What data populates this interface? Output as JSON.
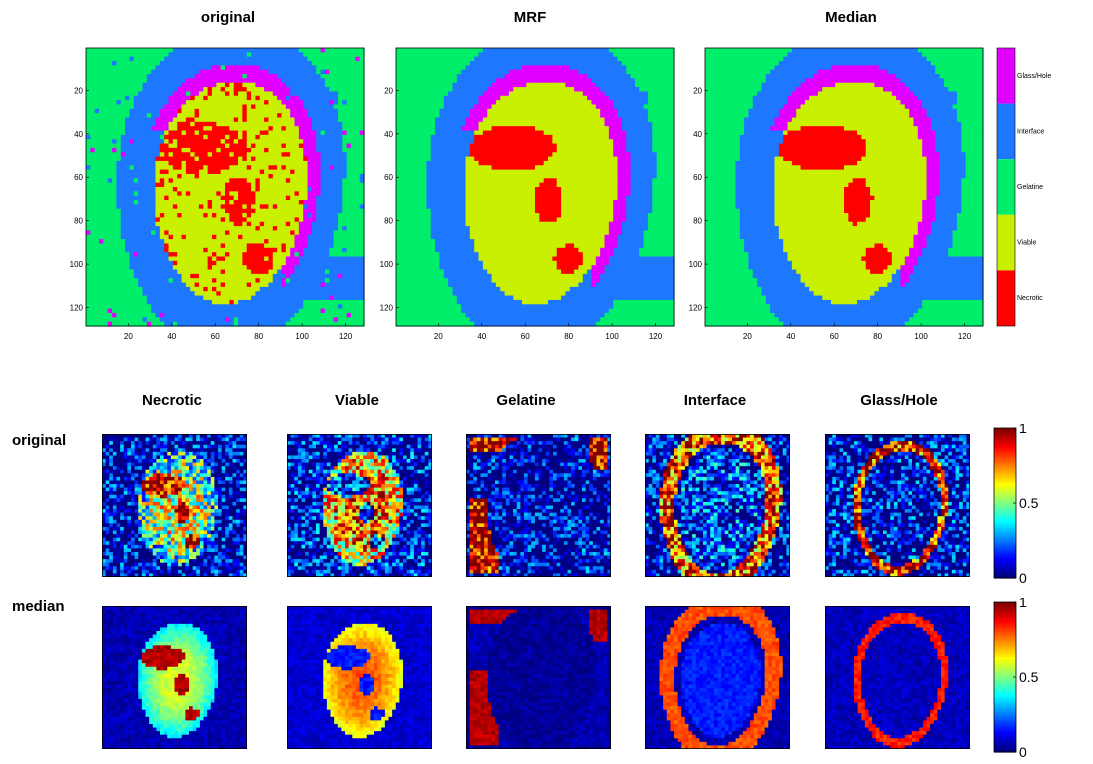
{
  "chart_data": [
    {
      "type": "heatmap",
      "title": "original",
      "panel": "top",
      "xticks": [
        20,
        40,
        60,
        80,
        100,
        120
      ],
      "yticks": [
        20,
        40,
        60,
        80,
        100,
        120
      ],
      "xlim": [
        1,
        128
      ],
      "ylim": [
        1,
        128
      ]
    },
    {
      "type": "heatmap",
      "title": "MRF",
      "panel": "top",
      "xticks": [
        20,
        40,
        60,
        80,
        100,
        120
      ],
      "yticks": [
        20,
        40,
        60,
        80,
        100,
        120
      ],
      "xlim": [
        1,
        128
      ],
      "ylim": [
        1,
        128
      ]
    },
    {
      "type": "heatmap",
      "title": "Median",
      "panel": "top",
      "xticks": [
        20,
        40,
        60,
        80,
        100,
        120
      ],
      "yticks": [
        20,
        40,
        60,
        80,
        100,
        120
      ],
      "xlim": [
        1,
        128
      ],
      "ylim": [
        1,
        128
      ]
    }
  ],
  "classes": [
    {
      "label": "Glass/Hole",
      "color": "#e100ff"
    },
    {
      "label": "Interface",
      "color": "#1e78ff"
    },
    {
      "label": "Gelatine",
      "color": "#00ee6a"
    },
    {
      "label": "Viable",
      "color": "#c8f000"
    },
    {
      "label": "Necrotic",
      "color": "#ff0000"
    }
  ],
  "prob_maps": {
    "columns": [
      "Necrotic",
      "Viable",
      "Gelatine",
      "Interface",
      "Glass/Hole"
    ],
    "rows": [
      "original",
      "median"
    ],
    "colorbar_ticks": [
      "1",
      "0.5",
      "0"
    ]
  },
  "colors": {
    "jet_low": "#00008f",
    "jet_mid": "#7fff7f",
    "jet_high": "#800000"
  }
}
